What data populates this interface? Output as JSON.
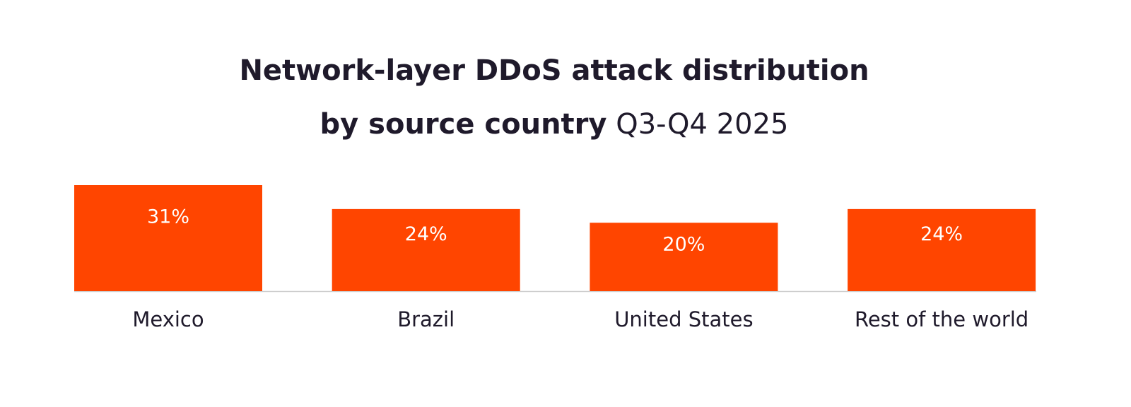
{
  "chart_data": {
    "type": "bar",
    "title_bold_line1": "Network-layer DDoS attack distribution",
    "title_bold_line2": "by source country",
    "title_light_line2": "Q3-Q4 2025",
    "categories": [
      "Mexico",
      "Brazil",
      "United States",
      "Rest of the world"
    ],
    "values": [
      31,
      24,
      20,
      24
    ],
    "data_labels": [
      "31%",
      "24%",
      "20%",
      "24%"
    ],
    "unit": "%",
    "bar_color": "#ff4500",
    "baseline_color": "#cccccc",
    "text_color": "#1f1a2b",
    "label_color": "#ffffff",
    "ylim": [
      0,
      31
    ],
    "grid": false,
    "legend": "none",
    "xlabel": "",
    "ylabel": ""
  }
}
